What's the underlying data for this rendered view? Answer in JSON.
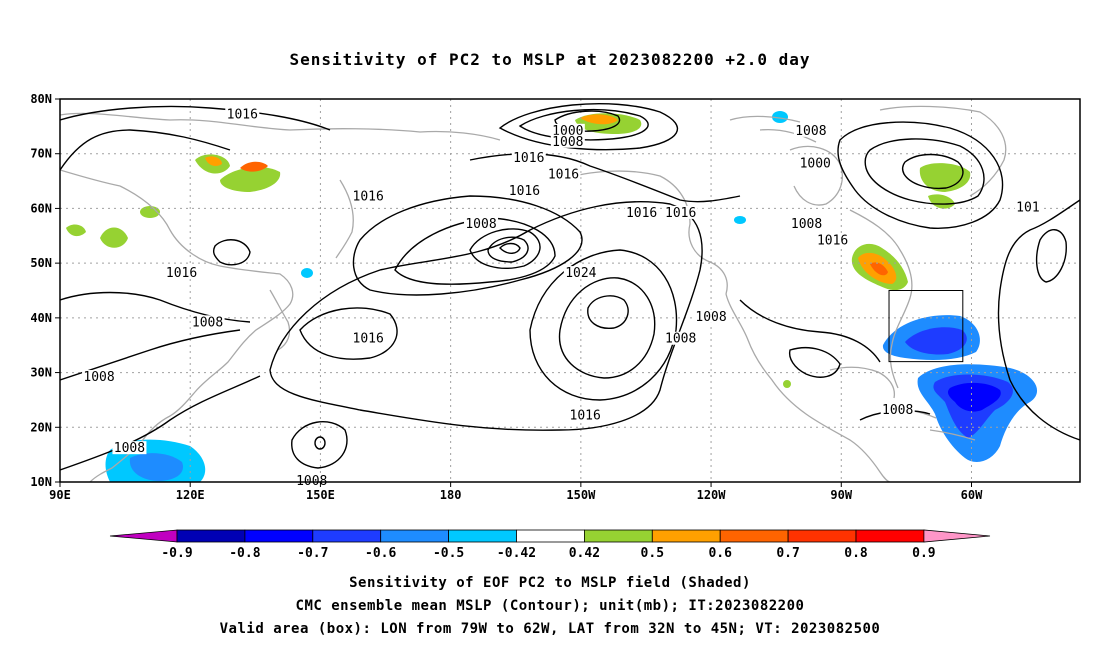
{
  "title": "Sensitivity of PC2 to MSLP at 2023082200 +2.0 day",
  "axes": {
    "lon_ticks": [
      "90E",
      "120E",
      "150E",
      "180",
      "150W",
      "120W",
      "90W",
      "60W"
    ],
    "lat_ticks": [
      "80N",
      "70N",
      "60N",
      "50N",
      "40N",
      "30N",
      "20N",
      "10N"
    ]
  },
  "map_extent": {
    "lon_min": 90,
    "lon_max": 325,
    "lat_min": 10,
    "lat_max": 80
  },
  "valid_box": {
    "lon_west": 281,
    "lon_east": 298,
    "lat_south": 32,
    "lat_north": 45
  },
  "contour_labels": [
    {
      "text": "1016",
      "lon": 132,
      "lat": 77
    },
    {
      "text": "1000",
      "lon": 207,
      "lat": 74
    },
    {
      "text": "1008",
      "lon": 207,
      "lat": 72
    },
    {
      "text": "1016",
      "lon": 198,
      "lat": 69
    },
    {
      "text": "1016",
      "lon": 206,
      "lat": 66
    },
    {
      "text": "1016",
      "lon": 197,
      "lat": 63
    },
    {
      "text": "1016",
      "lon": 161,
      "lat": 62
    },
    {
      "text": "1016",
      "lon": 224,
      "lat": 59
    },
    {
      "text": "1016",
      "lon": 233,
      "lat": 59
    },
    {
      "text": "1008",
      "lon": 263,
      "lat": 74
    },
    {
      "text": "1000",
      "lon": 264,
      "lat": 68
    },
    {
      "text": "101",
      "lon": 313,
      "lat": 60
    },
    {
      "text": "1008",
      "lon": 262,
      "lat": 57
    },
    {
      "text": "1016",
      "lon": 268,
      "lat": 54
    },
    {
      "text": "1008",
      "lon": 187,
      "lat": 57
    },
    {
      "text": "1024",
      "lon": 210,
      "lat": 48
    },
    {
      "text": "1016",
      "lon": 118,
      "lat": 48
    },
    {
      "text": "1008",
      "lon": 124,
      "lat": 39
    },
    {
      "text": "1016",
      "lon": 161,
      "lat": 36
    },
    {
      "text": "1008",
      "lon": 240,
      "lat": 40
    },
    {
      "text": "1008",
      "lon": 233,
      "lat": 36
    },
    {
      "text": "1008",
      "lon": 99,
      "lat": 29
    },
    {
      "text": "1016",
      "lon": 211,
      "lat": 22
    },
    {
      "text": "1008",
      "lon": 283,
      "lat": 23
    },
    {
      "text": "1008",
      "lon": 106,
      "lat": 16
    },
    {
      "text": "1008",
      "lon": 148,
      "lat": 10
    }
  ],
  "colorbar": {
    "labels": [
      "-0.9",
      "-0.8",
      "-0.7",
      "-0.6",
      "-0.5",
      "-0.42",
      "0.42",
      "0.5",
      "0.6",
      "0.7",
      "0.8",
      "0.9"
    ],
    "colors": [
      "#c000c0",
      "#0000b4",
      "#0000ff",
      "#1e3cff",
      "#1e8cff",
      "#00c8ff",
      "#ffffff",
      "#96d232",
      "#ffa000",
      "#ff6400",
      "#ff3200",
      "#ff0000",
      "#ff96c8"
    ]
  },
  "captions": [
    "Sensitivity of EOF PC2 to MSLP field (Shaded)",
    "CMC ensemble mean MSLP (Contour); unit(mb); IT:2023082200",
    "Valid area (box): LON from 79W to 62W, LAT from 32N to 45N; VT: 2023082500"
  ]
}
